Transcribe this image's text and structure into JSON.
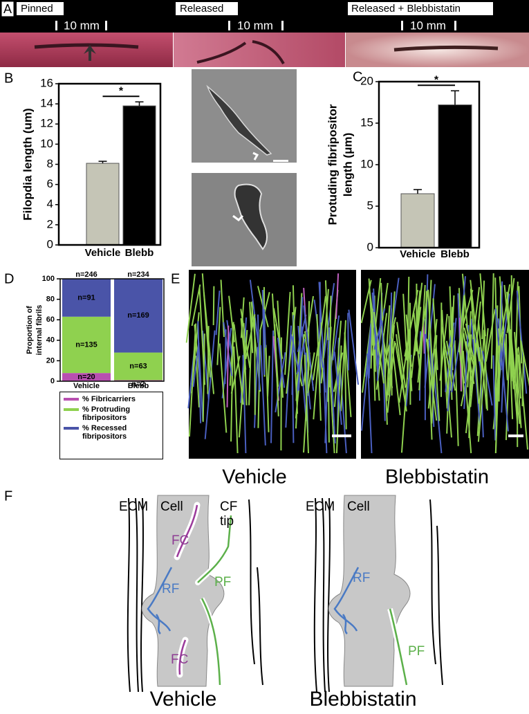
{
  "panel_labels": [
    "A",
    "B",
    "C",
    "D",
    "E",
    "F"
  ],
  "panel_a": {
    "labels": [
      "Pinned",
      "Released",
      "Released + Blebbistatin"
    ],
    "scale": [
      "10 mm",
      "10 mm",
      "10 mm"
    ]
  },
  "panel_e": {
    "labels": [
      "Vehicle",
      "Blebbistatin"
    ]
  },
  "panel_f": {
    "left": {
      "ecm": "ECM",
      "cell": "Cell",
      "fc_top": "FC",
      "cf": "CF",
      "tip": "tip",
      "rf": "RF",
      "pf": "PF",
      "fc_bottom": "FC",
      "title": "Vehicle"
    },
    "right": {
      "ecm": "ECM",
      "cell": "Cell",
      "rf": "RF",
      "pf": "PF",
      "title": "Blebbistatin"
    }
  },
  "chart_data": [
    {
      "type": "bar",
      "ylabel": [
        "Filopdia length (um)"
      ],
      "categories": [
        "Vehicle",
        "Blebb"
      ],
      "values": [
        8.1,
        13.8
      ],
      "errors": [
        0.2,
        0.4
      ],
      "colors": [
        "#c5c5b6",
        "#000000"
      ],
      "ylim": [
        0,
        16
      ],
      "yticks": [
        0,
        2,
        4,
        6,
        8,
        10,
        12,
        14,
        16
      ],
      "annotation": "*"
    },
    {
      "type": "bar",
      "ylabel": [
        "Protuding fibripositor",
        "length (μm)"
      ],
      "categories": [
        "Vehicle",
        "Blebb"
      ],
      "values": [
        6.5,
        17.2
      ],
      "errors": [
        0.5,
        1.7
      ],
      "colors": [
        "#c5c5b6",
        "#000000"
      ],
      "ylim": [
        0,
        20
      ],
      "yticks": [
        0,
        5,
        10,
        15,
        20
      ],
      "annotation": "*"
    },
    {
      "type": "stacked_bar",
      "ylabel": [
        "Proportion of",
        "internal fibrils"
      ],
      "categories": [
        "Vehicle",
        "Blebb"
      ],
      "total_labels": [
        "n=246",
        "n=234"
      ],
      "ylim": [
        0,
        100
      ],
      "yticks": [
        0,
        20,
        40,
        60,
        80,
        100
      ],
      "legend": "below",
      "series": [
        {
          "name": "% Fibricarriers",
          "color": "#b84fb0",
          "values": [
            8,
            1
          ],
          "annotations": [
            "n=20",
            "n=2"
          ]
        },
        {
          "name": "% Protruding fibripositors",
          "color": "#8fd14f",
          "values": [
            55,
            27
          ],
          "annotations": [
            "n=135",
            "n=63"
          ]
        },
        {
          "name": "% Recessed fibripositors",
          "color": "#4a54a8",
          "values": [
            37,
            72
          ],
          "annotations": [
            "n=91",
            "n=169"
          ]
        }
      ]
    }
  ]
}
